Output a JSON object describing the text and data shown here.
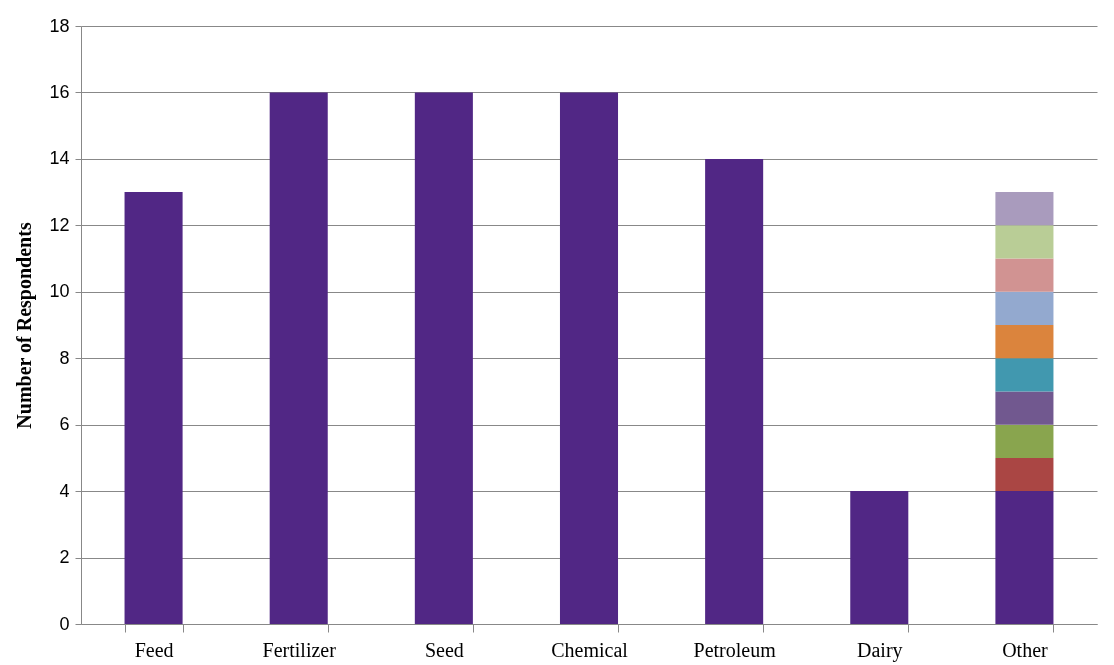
{
  "chart_data": {
    "type": "bar",
    "ylabel": "Number  of Respondents",
    "categories": [
      "Feed",
      "Fertilizer",
      "Seed",
      "Chemical",
      "Petroleum",
      "Dairy",
      "Other"
    ],
    "stacked": true,
    "legend": false,
    "grid": "y",
    "ylim": [
      0,
      18
    ],
    "yticks": [
      0,
      2,
      4,
      6,
      8,
      10,
      12,
      14,
      16,
      18
    ],
    "series": [
      {
        "color": "#512785",
        "values": [
          13,
          16,
          16,
          16,
          14,
          4,
          4
        ]
      },
      {
        "color": "#aa4644",
        "values": [
          null,
          null,
          null,
          null,
          null,
          null,
          1
        ]
      },
      {
        "color": "#89a54e",
        "values": [
          null,
          null,
          null,
          null,
          null,
          null,
          1
        ]
      },
      {
        "color": "#71588f",
        "values": [
          null,
          null,
          null,
          null,
          null,
          null,
          1
        ]
      },
      {
        "color": "#4198af",
        "values": [
          null,
          null,
          null,
          null,
          null,
          null,
          1
        ]
      },
      {
        "color": "#db843d",
        "values": [
          null,
          null,
          null,
          null,
          null,
          null,
          1
        ]
      },
      {
        "color": "#93a9cf",
        "values": [
          null,
          null,
          null,
          null,
          null,
          null,
          1
        ]
      },
      {
        "color": "#d19392",
        "values": [
          null,
          null,
          null,
          null,
          null,
          null,
          1
        ]
      },
      {
        "color": "#b9cd96",
        "values": [
          null,
          null,
          null,
          null,
          null,
          null,
          1
        ]
      },
      {
        "color": "#a99bbd",
        "values": [
          null,
          null,
          null,
          null,
          null,
          null,
          1
        ]
      }
    ]
  }
}
